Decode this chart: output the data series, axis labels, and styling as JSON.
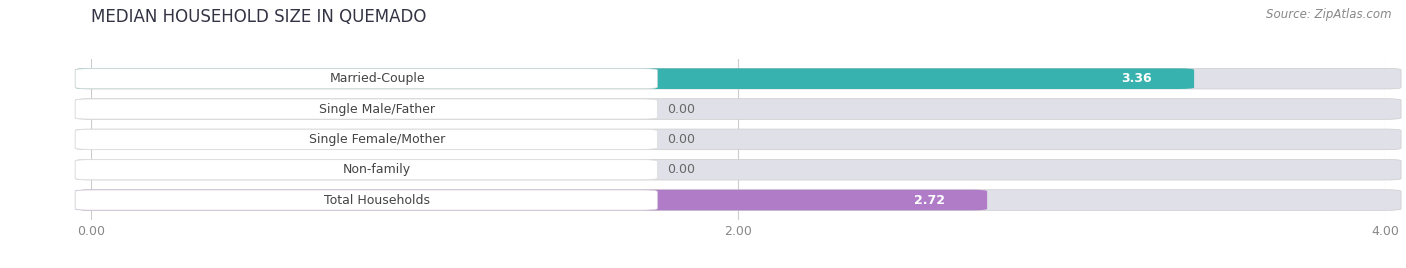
{
  "title": "MEDIAN HOUSEHOLD SIZE IN QUEMADO",
  "source": "Source: ZipAtlas.com",
  "categories": [
    "Married-Couple",
    "Single Male/Father",
    "Single Female/Mother",
    "Non-family",
    "Total Households"
  ],
  "values": [
    3.36,
    0.0,
    0.0,
    0.0,
    2.72
  ],
  "bar_colors": [
    "#38b2ae",
    "#a8bce8",
    "#f090a0",
    "#f5c990",
    "#b07cc8"
  ],
  "xlim": [
    0,
    4.0
  ],
  "xticks": [
    0.0,
    2.0,
    4.0
  ],
  "xtick_labels": [
    "0.00",
    "2.00",
    "4.00"
  ],
  "background_color": "#ffffff",
  "bar_bg_color": "#e8e8ec",
  "bar_track_color": "#e0e0e8",
  "title_fontsize": 12,
  "source_fontsize": 8.5,
  "label_fontsize": 9,
  "value_fontsize": 9
}
